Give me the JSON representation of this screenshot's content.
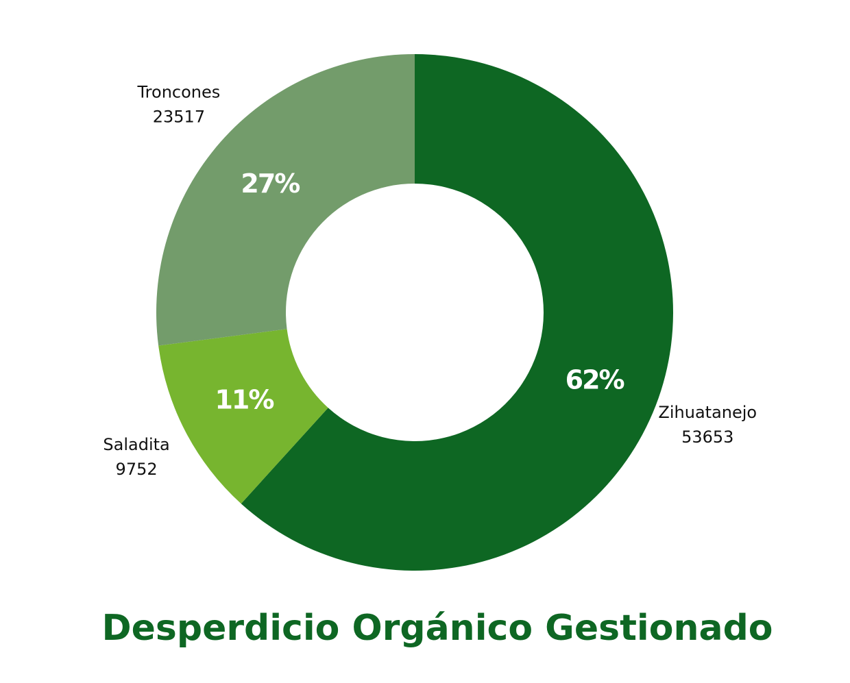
{
  "chart_data": {
    "type": "donut",
    "title": "Desperdicio Orgánico Gestionado",
    "categories": [
      "Zihuatanejo",
      "Saladita",
      "Troncones"
    ],
    "values": [
      53653,
      9752,
      23517
    ],
    "shares": [
      62,
      11,
      27
    ],
    "share_labels": [
      "62%",
      "11%",
      "27%"
    ],
    "colors": [
      "#0e6723",
      "#77b52f",
      "#739c6b"
    ]
  }
}
